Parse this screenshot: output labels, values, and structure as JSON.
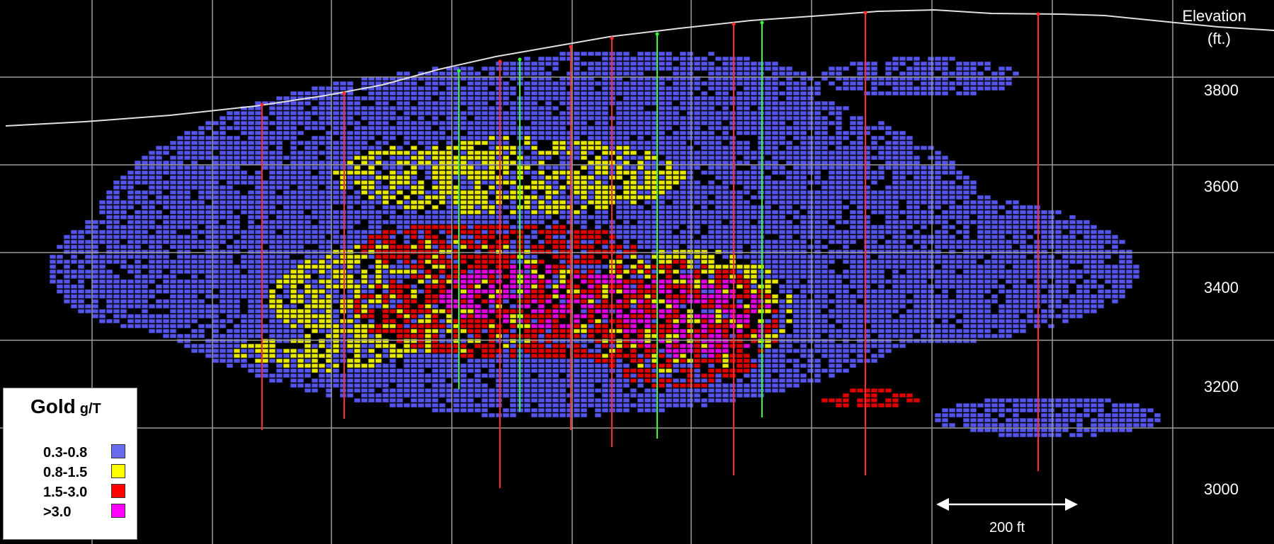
{
  "figure": {
    "axis_title_line1": "Elevation",
    "axis_title_line2": "(ft.)",
    "elevation_ticks": [
      "3800",
      "3600",
      "3400",
      "3200",
      "3000"
    ],
    "scale_bar_label": "200 ft"
  },
  "legend": {
    "title": "Gold",
    "unit": "g/T",
    "items": [
      {
        "label": "0.3-0.8",
        "color": "#6b6bf0"
      },
      {
        "label": "0.8-1.5",
        "color": "#ffff00"
      },
      {
        "label": "1.5-3.0",
        "color": "#ff0000"
      },
      {
        "label": ">3.0",
        "color": "#ff00ff"
      }
    ]
  },
  "colors": {
    "background": "#000000",
    "grid": "#9a9a9a",
    "topography": "#e0e0e0",
    "drillhole_red": "#ff2a2a",
    "drillhole_green": "#33ff33",
    "grade_low": "#5555ee",
    "grade_mid": "#e8e800",
    "grade_high": "#e00000",
    "grade_very_high": "#e000e0"
  }
}
